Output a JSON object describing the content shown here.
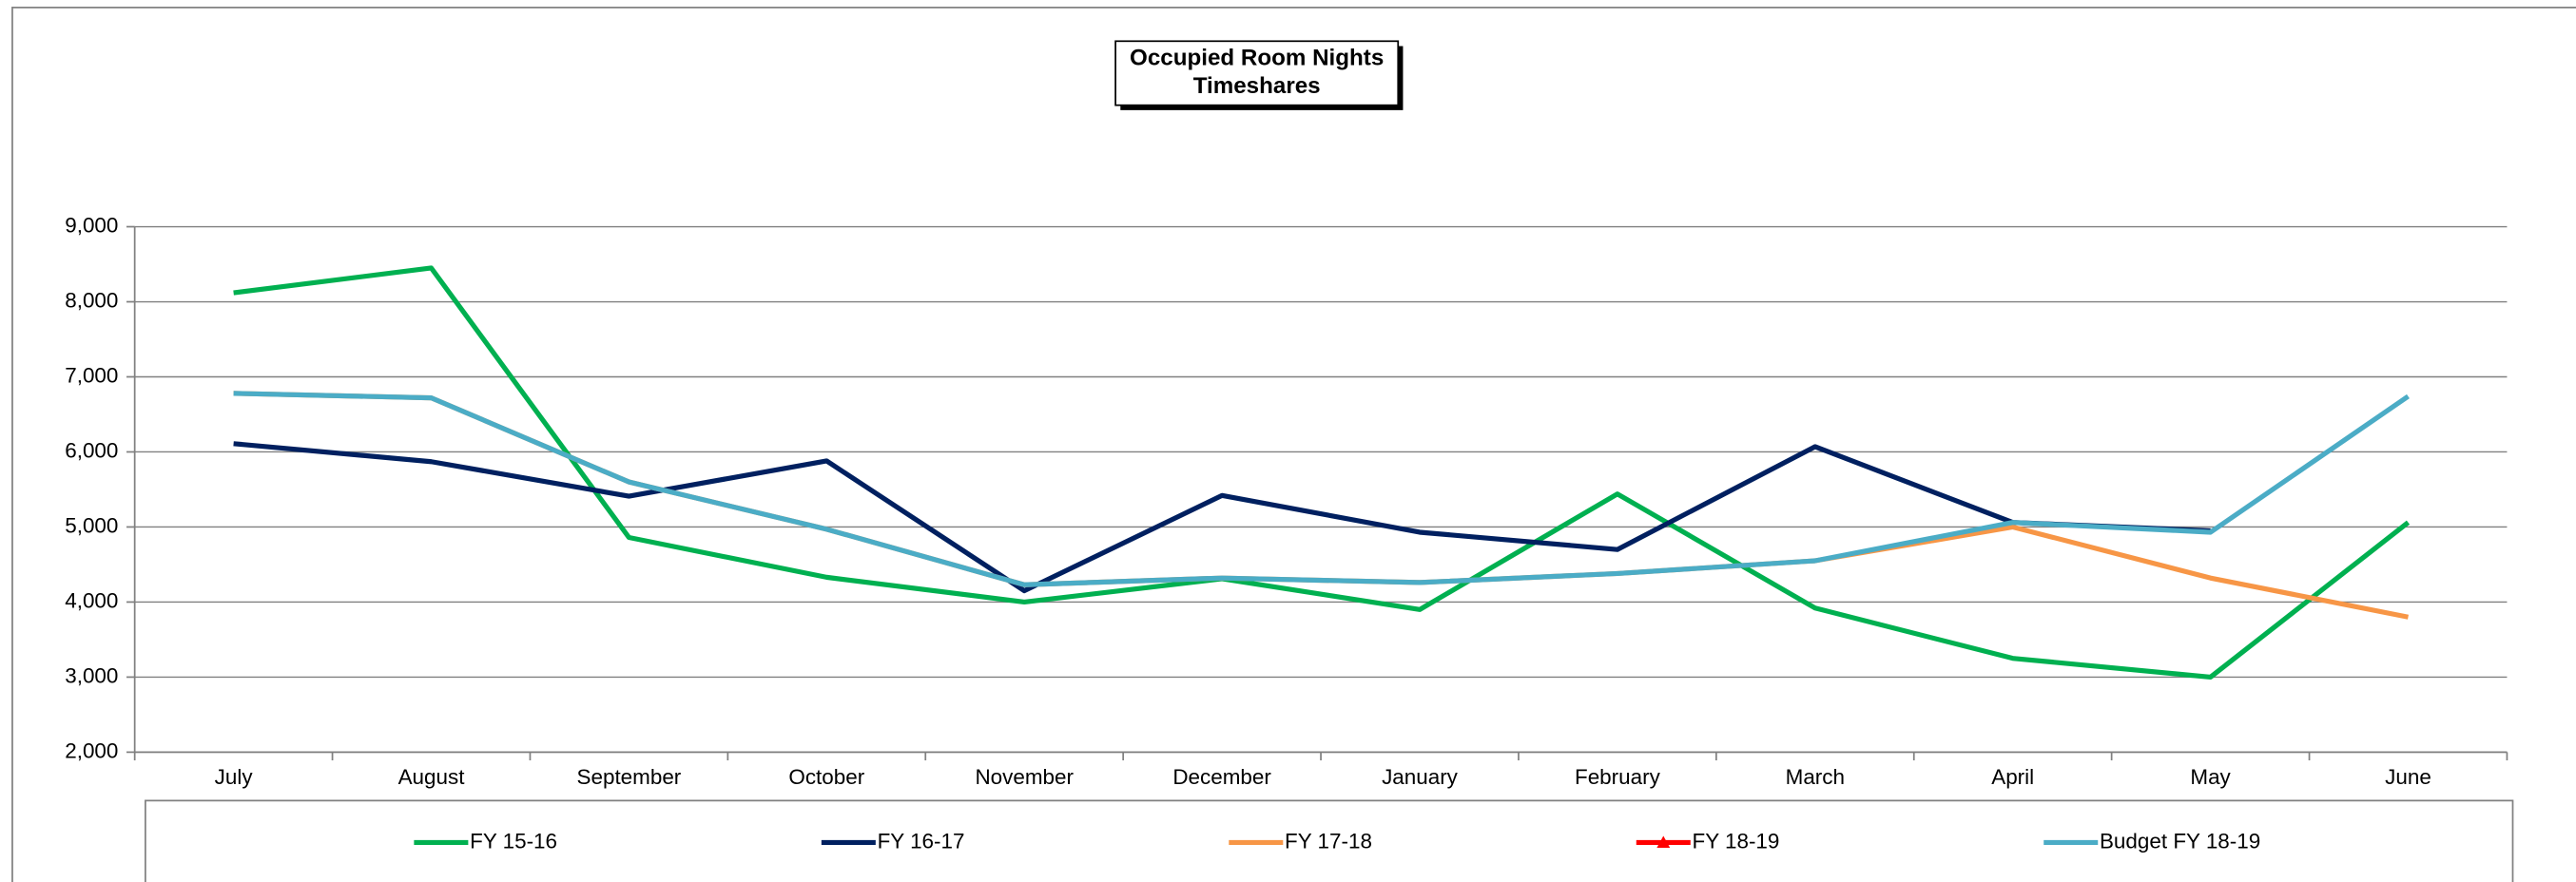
{
  "chart_data": {
    "type": "line",
    "title": [
      "Occupied Room Nights",
      "Timeshares"
    ],
    "categories": [
      "July",
      "August",
      "September",
      "October",
      "November",
      "December",
      "January",
      "February",
      "March",
      "April",
      "May",
      "June"
    ],
    "series": [
      {
        "name": "FY 15-16",
        "color": "#00b050",
        "values": [
          8120,
          8450,
          4860,
          4330,
          4000,
          4310,
          3900,
          5440,
          3920,
          3250,
          3000,
          5060
        ]
      },
      {
        "name": "FY 16-17",
        "color": "#002060",
        "values": [
          6110,
          5870,
          5410,
          5880,
          4150,
          5420,
          4930,
          4700,
          6070,
          5060,
          4950,
          null
        ]
      },
      {
        "name": "FY 17-18",
        "color": "#f79646",
        "values": [
          6780,
          6720,
          5600,
          4970,
          4230,
          4320,
          4260,
          4380,
          4550,
          5000,
          4320,
          3800
        ]
      },
      {
        "name": "FY 18-19",
        "color": "#ff0000",
        "marker": "triangle",
        "values": [
          null,
          null,
          null,
          null,
          null,
          null,
          null,
          null,
          null,
          null,
          null,
          null
        ]
      },
      {
        "name": "Budget FY 18-19",
        "color": "#4bacc6",
        "values": [
          6780,
          6720,
          5600,
          4970,
          4230,
          4320,
          4260,
          4380,
          4550,
          5060,
          4930,
          6740
        ]
      }
    ],
    "ylim": [
      2000,
      9000
    ],
    "yticks": [
      {
        "value": 2000,
        "label": "2,000"
      },
      {
        "value": 3000,
        "label": "3,000"
      },
      {
        "value": 4000,
        "label": "4,000"
      },
      {
        "value": 5000,
        "label": "5,000"
      },
      {
        "value": 6000,
        "label": "6,000"
      },
      {
        "value": 7000,
        "label": "7,000"
      },
      {
        "value": 8000,
        "label": "8,000"
      },
      {
        "value": 9000,
        "label": "9,000"
      }
    ],
    "grid": true,
    "legend": "bottom"
  }
}
